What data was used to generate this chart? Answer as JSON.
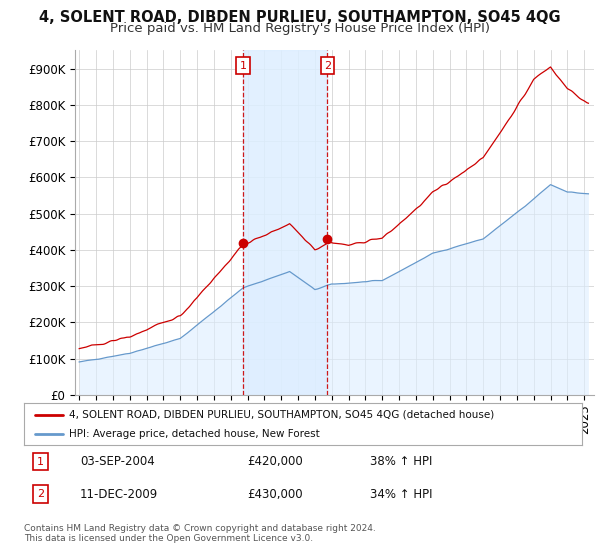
{
  "title": "4, SOLENT ROAD, DIBDEN PURLIEU, SOUTHAMPTON, SO45 4QG",
  "subtitle": "Price paid vs. HM Land Registry's House Price Index (HPI)",
  "ylim": [
    0,
    950000
  ],
  "yticks": [
    0,
    100000,
    200000,
    300000,
    400000,
    500000,
    600000,
    700000,
    800000,
    900000
  ],
  "ytick_labels": [
    "£0",
    "£100K",
    "£200K",
    "£300K",
    "£400K",
    "£500K",
    "£600K",
    "£700K",
    "£800K",
    "£900K"
  ],
  "red_line_color": "#cc0000",
  "blue_line_color": "#6699cc",
  "blue_fill_color": "#ddeeff",
  "shade_fill_color": "#ddeeff",
  "marker1_idx": 117,
  "marker1_value": 420000,
  "marker2_idx": 177,
  "marker2_value": 430000,
  "legend_red_label": "4, SOLENT ROAD, DIBDEN PURLIEU, SOUTHAMPTON, SO45 4QG (detached house)",
  "legend_blue_label": "HPI: Average price, detached house, New Forest",
  "footnote": "Contains HM Land Registry data © Crown copyright and database right 2024.\nThis data is licensed under the Open Government Licence v3.0.",
  "title_fontsize": 10.5,
  "subtitle_fontsize": 9.5,
  "tick_fontsize": 8.5,
  "bg_color": "#ffffff",
  "grid_color": "#cccccc"
}
